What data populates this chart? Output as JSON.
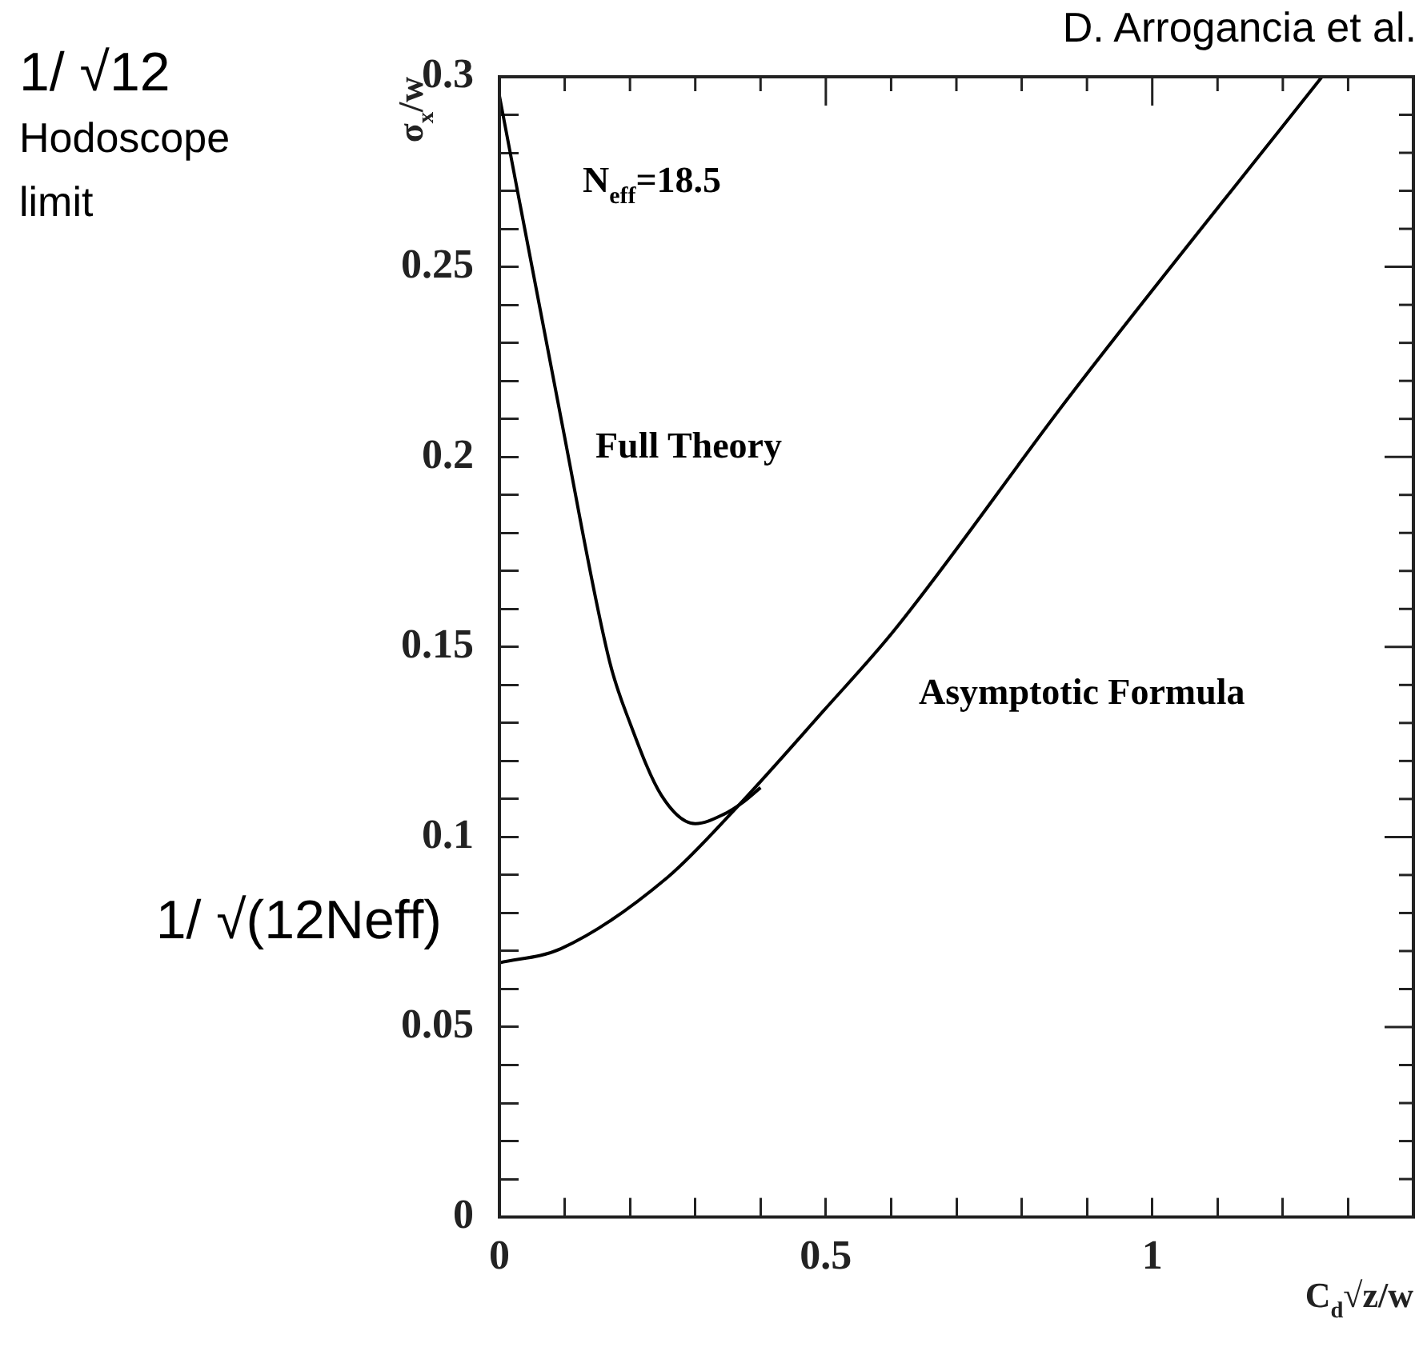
{
  "chart_data": {
    "type": "line",
    "xlabel": "C$_{d}$√z/w",
    "ylabel": "σ$_{x}$/w",
    "series": [
      {
        "color": "#000000",
        "x": [
          0,
          0.094,
          0.169,
          0.2,
          0.248,
          0.3,
          0.344,
          0.372,
          0.4
        ],
        "values": [
          0.295,
          0.2105,
          0.146,
          0.13,
          0.111,
          0.1035,
          0.106,
          0.109,
          0.113
        ]
      },
      {
        "color": "#000000",
        "x": [
          0,
          0.094,
          0.257,
          0.363,
          0.497,
          0.603,
          0.878,
          1.26
        ],
        "values": [
          0.0669,
          0.0706,
          0.0893,
          0.1077,
          0.1333,
          0.154,
          0.217,
          0.3
        ]
      }
    ],
    "xlim": [
      0,
      1.4
    ],
    "ylim": [
      0,
      0.3
    ],
    "xticks": [
      0,
      {
        "value": 0.1,
        "label": null
      },
      {
        "value": 0.2,
        "label": null
      },
      {
        "value": 0.3,
        "label": null
      },
      {
        "value": 0.4,
        "label": null
      },
      0.5,
      {
        "value": 0.6,
        "label": null
      },
      {
        "value": 0.7,
        "label": null
      },
      {
        "value": 0.8,
        "label": null
      },
      {
        "value": 0.9,
        "label": null
      },
      1,
      {
        "value": 1.1,
        "label": null
      },
      {
        "value": 1.2,
        "label": null
      },
      {
        "value": 1.3,
        "label": null
      }
    ],
    "yticks": [
      0,
      {
        "value": 0.01,
        "label": null
      },
      {
        "value": 0.02,
        "label": null
      },
      {
        "value": 0.03,
        "label": null
      },
      {
        "value": 0.04,
        "label": null
      },
      0.05,
      {
        "value": 0.06,
        "label": null
      },
      {
        "value": 0.07,
        "label": null
      },
      {
        "value": 0.08,
        "label": null
      },
      {
        "value": 0.09,
        "label": null
      },
      0.1,
      {
        "value": 0.11,
        "label": null
      },
      {
        "value": 0.12,
        "label": null
      },
      {
        "value": 0.13,
        "label": null
      },
      {
        "value": 0.14,
        "label": null
      },
      0.15,
      {
        "value": 0.16,
        "label": null
      },
      {
        "value": 0.17,
        "label": null
      },
      {
        "value": 0.18,
        "label": null
      },
      {
        "value": 0.19,
        "label": null
      },
      0.2,
      {
        "value": 0.21,
        "label": null
      },
      {
        "value": 0.22,
        "label": null
      },
      {
        "value": 0.23,
        "label": null
      },
      {
        "value": 0.24,
        "label": null
      },
      0.25,
      {
        "value": 0.26,
        "label": null
      },
      {
        "value": 0.27,
        "label": null
      },
      {
        "value": 0.28,
        "label": null
      },
      {
        "value": 0.29,
        "label": null
      },
      0.3
    ],
    "grid": false,
    "legend": false,
    "marker": "none",
    "line_style": "solid",
    "annotations": [
      "D. Arrogancia et al.",
      "N$_{eff}$=18.5",
      "Full Theory",
      "Asymptotic Formula",
      "1/ √12",
      "Hodoscope limit",
      "1/ √(12Neff)"
    ]
  }
}
